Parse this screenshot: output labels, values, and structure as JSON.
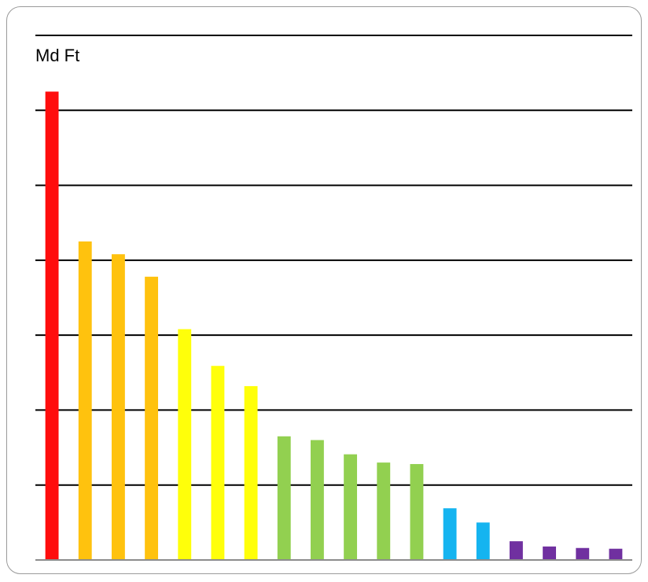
{
  "chart_data": {
    "type": "bar",
    "ylabel": "Md Ft",
    "ylim": [
      0,
      7
    ],
    "grid": true,
    "values": [
      6.25,
      4.25,
      4.08,
      3.78,
      3.08,
      2.59,
      2.32,
      1.65,
      1.6,
      1.41,
      1.3,
      1.28,
      0.69,
      0.5,
      0.25,
      0.18,
      0.16,
      0.15
    ],
    "colors": [
      "#ff0d0d",
      "#ffc20e",
      "#ffc20e",
      "#ffc20e",
      "#ffff0a",
      "#ffff0a",
      "#ffff0a",
      "#92d050",
      "#92d050",
      "#92d050",
      "#92d050",
      "#92d050",
      "#15b4f0",
      "#15b4f0",
      "#7030a0",
      "#7030a0",
      "#7030a0",
      "#7030a0"
    ]
  }
}
